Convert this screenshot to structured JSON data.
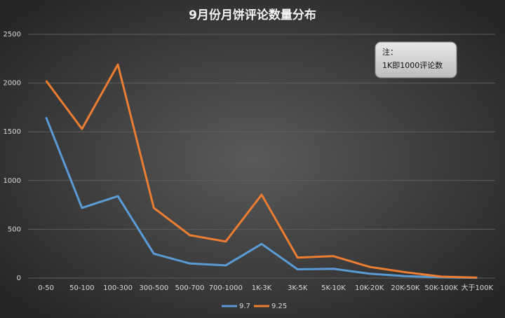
{
  "chart_data": {
    "type": "line",
    "title": "9月份月饼评论数量分布",
    "categories": [
      "0-50",
      "50-100",
      "100-300",
      "300-500",
      "500-700",
      "700-1000",
      "1K-3K",
      "3K-5K",
      "5K-10K",
      "10K-20K",
      "20K-50K",
      "50K-100K",
      "大于100K"
    ],
    "series": [
      {
        "name": "9.7",
        "color": "#5b9bd5",
        "values": [
          1650,
          720,
          840,
          250,
          150,
          130,
          350,
          90,
          95,
          45,
          20,
          8,
          3
        ]
      },
      {
        "name": "9.25",
        "color": "#ed7d31",
        "values": [
          2025,
          1530,
          2190,
          720,
          440,
          375,
          855,
          210,
          225,
          115,
          60,
          15,
          5
        ]
      }
    ],
    "ylim": [
      0,
      2500
    ],
    "yticks": [
      0,
      500,
      1000,
      1500,
      2000,
      2500
    ],
    "grid": true,
    "annotation": [
      "注：",
      "1K即1000评论数"
    ],
    "legend": "bottom"
  }
}
